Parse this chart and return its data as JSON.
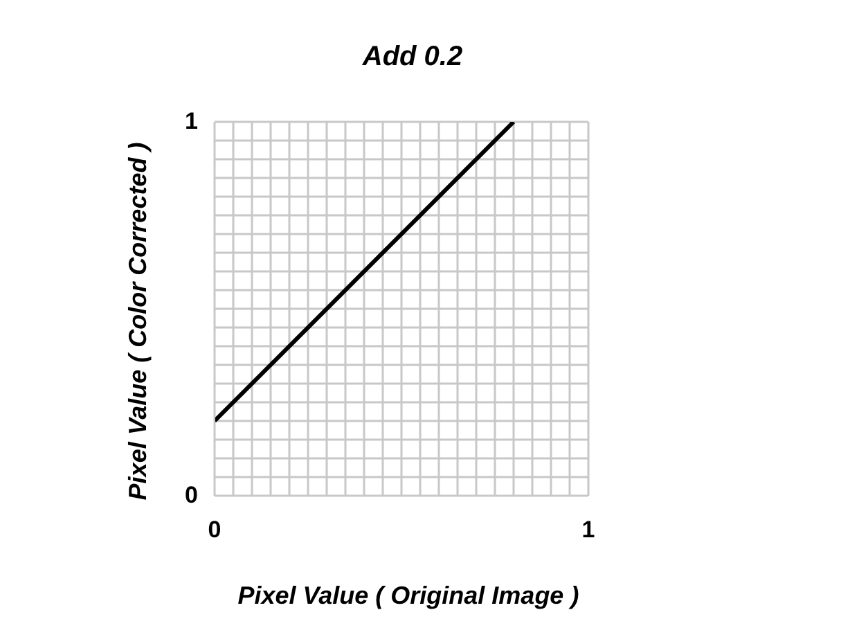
{
  "chart_data": {
    "type": "line",
    "title": "Add 0.2",
    "xlabel": "Pixel Value ( Original Image )",
    "ylabel": "Pixel Value ( Color Corrected )",
    "x": [
      0,
      0.8
    ],
    "series": [
      {
        "color": "#000000",
        "values": [
          0.2,
          1
        ]
      }
    ],
    "xlim": [
      0,
      1
    ],
    "ylim": [
      0,
      1
    ],
    "xticks": [
      0,
      {
        "value": 0.05,
        "label": null
      },
      {
        "value": 0.1,
        "label": null
      },
      {
        "value": 0.15,
        "label": null
      },
      {
        "value": 0.2,
        "label": null
      },
      {
        "value": 0.25,
        "label": null
      },
      {
        "value": 0.3,
        "label": null
      },
      {
        "value": 0.35,
        "label": null
      },
      {
        "value": 0.4,
        "label": null
      },
      {
        "value": 0.45,
        "label": null
      },
      {
        "value": 0.5,
        "label": null
      },
      {
        "value": 0.55,
        "label": null
      },
      {
        "value": 0.6,
        "label": null
      },
      {
        "value": 0.65,
        "label": null
      },
      {
        "value": 0.7,
        "label": null
      },
      {
        "value": 0.75,
        "label": null
      },
      {
        "value": 0.8,
        "label": null
      },
      {
        "value": 0.85,
        "label": null
      },
      {
        "value": 0.9,
        "label": null
      },
      {
        "value": 0.95,
        "label": null
      },
      1
    ],
    "yticks": [
      0,
      {
        "value": 0.05,
        "label": null
      },
      {
        "value": 0.1,
        "label": null
      },
      {
        "value": 0.15,
        "label": null
      },
      {
        "value": 0.2,
        "label": null
      },
      {
        "value": 0.25,
        "label": null
      },
      {
        "value": 0.3,
        "label": null
      },
      {
        "value": 0.35,
        "label": null
      },
      {
        "value": 0.4,
        "label": null
      },
      {
        "value": 0.45,
        "label": null
      },
      {
        "value": 0.5,
        "label": null
      },
      {
        "value": 0.55,
        "label": null
      },
      {
        "value": 0.6,
        "label": null
      },
      {
        "value": 0.65,
        "label": null
      },
      {
        "value": 0.7,
        "label": null
      },
      {
        "value": 0.75,
        "label": null
      },
      {
        "value": 0.8,
        "label": null
      },
      {
        "value": 0.85,
        "label": null
      },
      {
        "value": 0.9,
        "label": null
      },
      {
        "value": 0.95,
        "label": null
      },
      1
    ],
    "grid": true,
    "marker": "none",
    "line_style": "solid"
  }
}
